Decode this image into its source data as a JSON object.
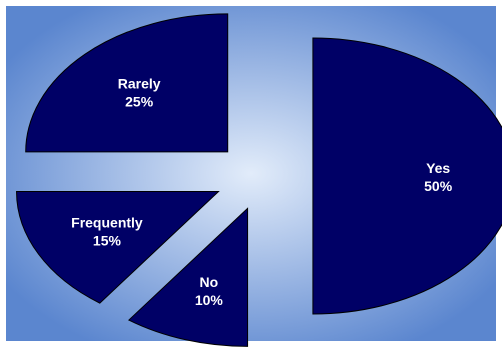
{
  "chart_data": {
    "type": "pie",
    "title": "",
    "exploded": true,
    "legend": "none",
    "slices": [
      {
        "label": "Yes",
        "value": 50,
        "value_label": "50%"
      },
      {
        "label": "No",
        "value": 10,
        "value_label": "10%"
      },
      {
        "label": "Frequently",
        "value": 15,
        "value_label": "15%"
      },
      {
        "label": "Rarely",
        "value": 25,
        "value_label": "25%"
      }
    ],
    "colors": {
      "slice_fill": "#000066",
      "slice_stroke": "#000000",
      "label_text": "#ffffff",
      "background_center": "#e2ecfa",
      "background_edge": "#5b86cf",
      "page_border": "#ffffff"
    }
  }
}
